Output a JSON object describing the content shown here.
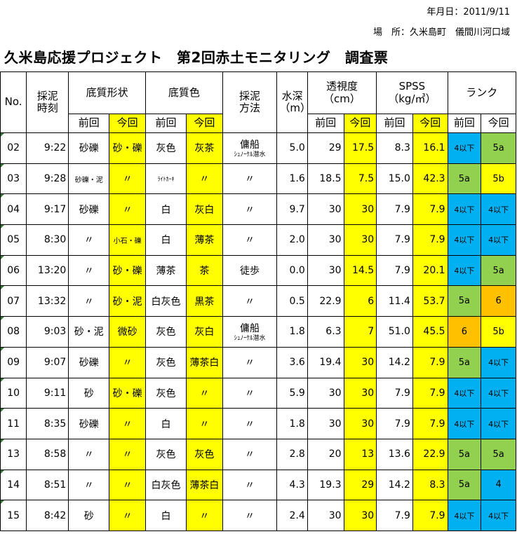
{
  "header": {
    "date_label": "年月日：2011/9/11",
    "place_label": "場　所：久米島町　儀間川河口域",
    "title": "久米島応援プロジェクト　第2回赤土モニタリング　調査票"
  },
  "columns": {
    "no": "No.",
    "time": "採泥\n時刻",
    "sediment_type": "底質形状",
    "sediment_color": "底質色",
    "method": "採泥\n方法",
    "depth": "水深\n（m）",
    "clarity": "透視度\n（cm）",
    "spss": "SPSS\n（kg/㎥）",
    "rank": "ランク",
    "prev": "前回",
    "curr": "今回"
  },
  "rows": [
    {
      "no": "02",
      "time": "9:22",
      "type_prev": "砂礫",
      "type_curr": "砂・礫",
      "color_prev": "灰色",
      "color_curr": "灰茶",
      "method": "傭船",
      "method_sub": "ｼｭﾉｰｹﾙ潜水",
      "depth": "5.0",
      "clar_prev": "29",
      "clar_curr": "17.5",
      "spss_prev": "8.3",
      "spss_curr": "16.1",
      "rank_prev": "4以下",
      "rank_curr": "5a"
    },
    {
      "no": "03",
      "time": "9:28",
      "type_prev": "砂礫・泥",
      "type_curr": "〃",
      "color_prev": "ﾗｲﾄｶｰｷ",
      "color_curr": "〃",
      "method": "〃",
      "method_sub": "",
      "depth": "1.6",
      "clar_prev": "18.5",
      "clar_curr": "7.5",
      "spss_prev": "15.0",
      "spss_curr": "42.3",
      "rank_prev": "5a",
      "rank_curr": "5b"
    },
    {
      "no": "04",
      "time": "9:17",
      "type_prev": "砂礫",
      "type_curr": "〃",
      "color_prev": "白",
      "color_curr": "灰白",
      "method": "〃",
      "method_sub": "",
      "depth": "9.7",
      "clar_prev": "30",
      "clar_curr": "30",
      "spss_prev": "7.9",
      "spss_curr": "7.9",
      "rank_prev": "4以下",
      "rank_curr": "4以下"
    },
    {
      "no": "05",
      "time": "8:30",
      "type_prev": "〃",
      "type_curr": "小石・礫",
      "color_prev": "白",
      "color_curr": "薄茶",
      "method": "〃",
      "method_sub": "",
      "depth": "2.0",
      "clar_prev": "30",
      "clar_curr": "30",
      "spss_prev": "7.9",
      "spss_curr": "7.9",
      "rank_prev": "4以下",
      "rank_curr": "4以下"
    },
    {
      "no": "06",
      "time": "13:20",
      "type_prev": "〃",
      "type_curr": "砂・礫",
      "color_prev": "薄茶",
      "color_curr": "茶",
      "method": "徒歩",
      "method_sub": "",
      "depth": "0.0",
      "clar_prev": "30",
      "clar_curr": "14.5",
      "spss_prev": "7.9",
      "spss_curr": "20.1",
      "rank_prev": "4以下",
      "rank_curr": "5a"
    },
    {
      "no": "07",
      "time": "13:32",
      "type_prev": "〃",
      "type_curr": "砂・泥",
      "color_prev": "白灰色",
      "color_curr": "黒茶",
      "method": "〃",
      "method_sub": "",
      "depth": "0.5",
      "clar_prev": "22.9",
      "clar_curr": "6",
      "spss_prev": "11.4",
      "spss_curr": "53.7",
      "rank_prev": "5a",
      "rank_curr": "6"
    },
    {
      "no": "08",
      "time": "9:03",
      "type_prev": "砂・泥",
      "type_curr": "微砂",
      "color_prev": "灰色",
      "color_curr": "灰白",
      "method": "傭船",
      "method_sub": "ｼｭﾉｰｹﾙ潜水",
      "depth": "1.8",
      "clar_prev": "6.3",
      "clar_curr": "7",
      "spss_prev": "51.0",
      "spss_curr": "45.5",
      "rank_prev": "6",
      "rank_curr": "5b"
    },
    {
      "no": "09",
      "time": "9:07",
      "type_prev": "砂礫",
      "type_curr": "〃",
      "color_prev": "灰色",
      "color_curr": "薄茶白",
      "method": "〃",
      "method_sub": "",
      "depth": "3.6",
      "clar_prev": "19.4",
      "clar_curr": "30",
      "spss_prev": "14.2",
      "spss_curr": "7.9",
      "rank_prev": "5a",
      "rank_curr": "4以下"
    },
    {
      "no": "10",
      "time": "9:11",
      "type_prev": "砂",
      "type_curr": "砂・礫",
      "color_prev": "灰色",
      "color_curr": "〃",
      "method": "〃",
      "method_sub": "",
      "depth": "5.9",
      "clar_prev": "30",
      "clar_curr": "30",
      "spss_prev": "7.9",
      "spss_curr": "7.9",
      "rank_prev": "4以下",
      "rank_curr": "4以下"
    },
    {
      "no": "11",
      "time": "8:35",
      "type_prev": "砂礫",
      "type_curr": "〃",
      "color_prev": "白",
      "color_curr": "〃",
      "method": "〃",
      "method_sub": "",
      "depth": "1.8",
      "clar_prev": "30",
      "clar_curr": "30",
      "spss_prev": "7.9",
      "spss_curr": "7.9",
      "rank_prev": "4以下",
      "rank_curr": "4以下"
    },
    {
      "no": "13",
      "time": "8:58",
      "type_prev": "〃",
      "type_curr": "〃",
      "color_prev": "灰色",
      "color_curr": "灰色",
      "method": "〃",
      "method_sub": "",
      "depth": "2.8",
      "clar_prev": "20",
      "clar_curr": "13",
      "spss_prev": "13.6",
      "spss_curr": "22.9",
      "rank_prev": "5a",
      "rank_curr": "5a"
    },
    {
      "no": "14",
      "time": "8:51",
      "type_prev": "〃",
      "type_curr": "〃",
      "color_prev": "白灰色",
      "color_curr": "薄茶白",
      "method": "〃",
      "method_sub": "",
      "depth": "4.3",
      "clar_prev": "19.3",
      "clar_curr": "29",
      "spss_prev": "14.2",
      "spss_curr": "8.3",
      "rank_prev": "5a",
      "rank_curr": "4"
    },
    {
      "no": "15",
      "time": "8:42",
      "type_prev": "砂",
      "type_curr": "〃",
      "color_prev": "白",
      "color_curr": "〃",
      "method": "〃",
      "method_sub": "",
      "depth": "2.4",
      "clar_prev": "30",
      "clar_curr": "30",
      "spss_prev": "7.9",
      "spss_curr": "7.9",
      "rank_prev": "4以下",
      "rank_curr": "4以下"
    }
  ],
  "colors": {
    "highlight_yellow": "#ffff00",
    "rank_4": "#00b0f0",
    "rank_5a": "#92d050",
    "rank_5b": "#ffff00",
    "rank_6": "#ffc000",
    "rank_4_single": "#00b0f0"
  }
}
